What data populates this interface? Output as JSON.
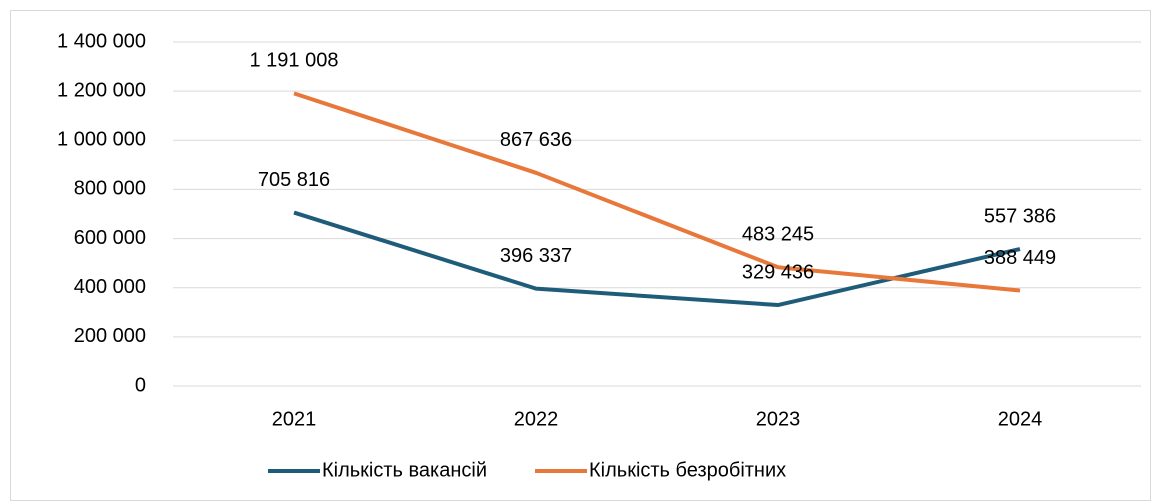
{
  "chart_data": {
    "type": "line",
    "categories": [
      "2021",
      "2022",
      "2023",
      "2024"
    ],
    "series": [
      {
        "name": "Кількість вакансій",
        "color": "#1f5c7a",
        "values": [
          705816,
          396337,
          329436,
          557386
        ],
        "value_labels": [
          "705 816",
          "396 337",
          "329 436",
          "557 386"
        ]
      },
      {
        "name": "Кількість безробітних",
        "color": "#e8773a",
        "values": [
          1191008,
          867636,
          483245,
          388449
        ],
        "value_labels": [
          "1 191 008",
          "867 636",
          "483 245",
          "388 449"
        ]
      }
    ],
    "ylim": [
      0,
      1400000
    ],
    "yticks": [
      0,
      {
        "value": 200000,
        "label": "200 000"
      },
      {
        "value": 400000,
        "label": "400 000"
      },
      {
        "value": 600000,
        "label": "600 000"
      },
      {
        "value": 800000,
        "label": "800 000"
      },
      {
        "value": 1000000,
        "label": "1 000 000"
      },
      {
        "value": 1200000,
        "label": "1 200 000"
      },
      {
        "value": 1400000,
        "label": "1 400 000"
      }
    ],
    "grid": true,
    "legend": "bottom"
  }
}
